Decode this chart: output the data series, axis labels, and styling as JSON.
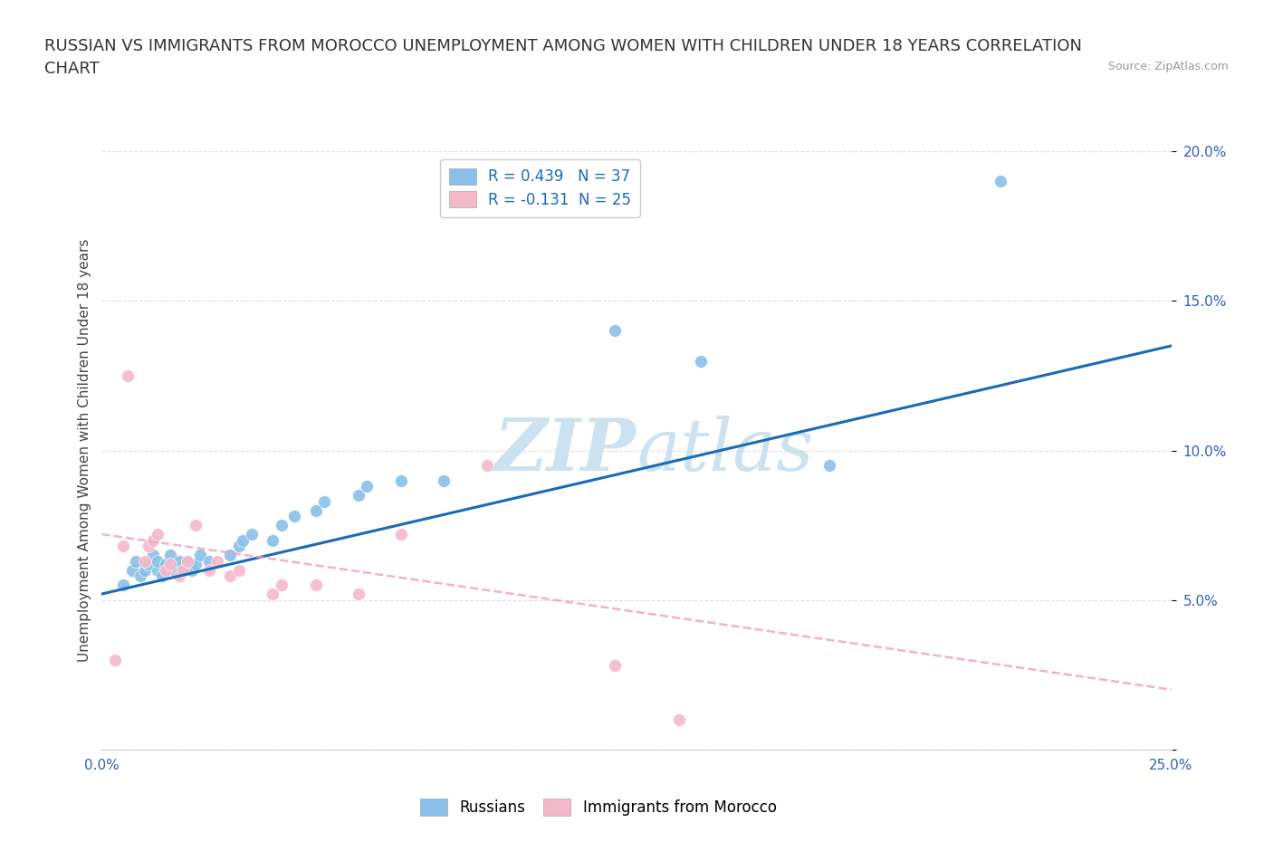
{
  "title_line1": "RUSSIAN VS IMMIGRANTS FROM MOROCCO UNEMPLOYMENT AMONG WOMEN WITH CHILDREN UNDER 18 YEARS CORRELATION",
  "title_line2": "CHART",
  "source_text": "Source: ZipAtlas.com",
  "ylabel": "Unemployment Among Women with Children Under 18 years",
  "xlim": [
    0.0,
    0.25
  ],
  "ylim": [
    0.0,
    0.2
  ],
  "yticks": [
    0.0,
    0.05,
    0.1,
    0.15,
    0.2
  ],
  "xticks": [
    0.0,
    0.05,
    0.1,
    0.15,
    0.2,
    0.25
  ],
  "ytick_labels": [
    "",
    "5.0%",
    "10.0%",
    "15.0%",
    "20.0%"
  ],
  "xtick_labels": [
    "0.0%",
    "",
    "",
    "",
    "",
    "25.0%"
  ],
  "legend_r1": "R = 0.439   N = 37",
  "legend_r2": "R = -0.131  N = 25",
  "legend_label1": "Russians",
  "legend_label2": "Immigrants from Morocco",
  "russian_color": "#89bfe8",
  "morocco_color": "#f5b8cb",
  "russian_line_color": "#1a6bb5",
  "morocco_line_color": "#f0a0b8",
  "tick_color": "#3060c0",
  "background_color": "#ffffff",
  "grid_color": "#dddddd",
  "watermark_color": "#c8dff0",
  "title_fontsize": 13,
  "axis_label_fontsize": 11,
  "tick_fontsize": 11,
  "russian_x": [
    0.005,
    0.007,
    0.008,
    0.009,
    0.01,
    0.011,
    0.012,
    0.013,
    0.013,
    0.014,
    0.015,
    0.016,
    0.017,
    0.018,
    0.019,
    0.02,
    0.021,
    0.022,
    0.023,
    0.025,
    0.03,
    0.032,
    0.033,
    0.035,
    0.04,
    0.042,
    0.045,
    0.05,
    0.052,
    0.06,
    0.062,
    0.07,
    0.08,
    0.12,
    0.14,
    0.17,
    0.21
  ],
  "russian_y": [
    0.055,
    0.06,
    0.063,
    0.058,
    0.06,
    0.062,
    0.065,
    0.06,
    0.063,
    0.058,
    0.062,
    0.065,
    0.06,
    0.063,
    0.06,
    0.063,
    0.06,
    0.062,
    0.065,
    0.063,
    0.065,
    0.068,
    0.07,
    0.072,
    0.07,
    0.075,
    0.078,
    0.08,
    0.083,
    0.085,
    0.088,
    0.09,
    0.09,
    0.14,
    0.13,
    0.095,
    0.19
  ],
  "morocco_x": [
    0.003,
    0.005,
    0.006,
    0.01,
    0.011,
    0.012,
    0.013,
    0.015,
    0.016,
    0.018,
    0.019,
    0.02,
    0.022,
    0.025,
    0.027,
    0.03,
    0.032,
    0.04,
    0.042,
    0.05,
    0.06,
    0.07,
    0.09,
    0.12,
    0.135
  ],
  "morocco_y": [
    0.03,
    0.068,
    0.125,
    0.063,
    0.068,
    0.07,
    0.072,
    0.06,
    0.062,
    0.058,
    0.06,
    0.063,
    0.075,
    0.06,
    0.063,
    0.058,
    0.06,
    0.052,
    0.055,
    0.055,
    0.052,
    0.072,
    0.095,
    0.028,
    0.01
  ],
  "russian_trend_x": [
    0.0,
    0.25
  ],
  "russian_trend_y": [
    0.052,
    0.135
  ],
  "morocco_trend_x": [
    0.0,
    0.25
  ],
  "morocco_trend_y": [
    0.072,
    0.02
  ]
}
